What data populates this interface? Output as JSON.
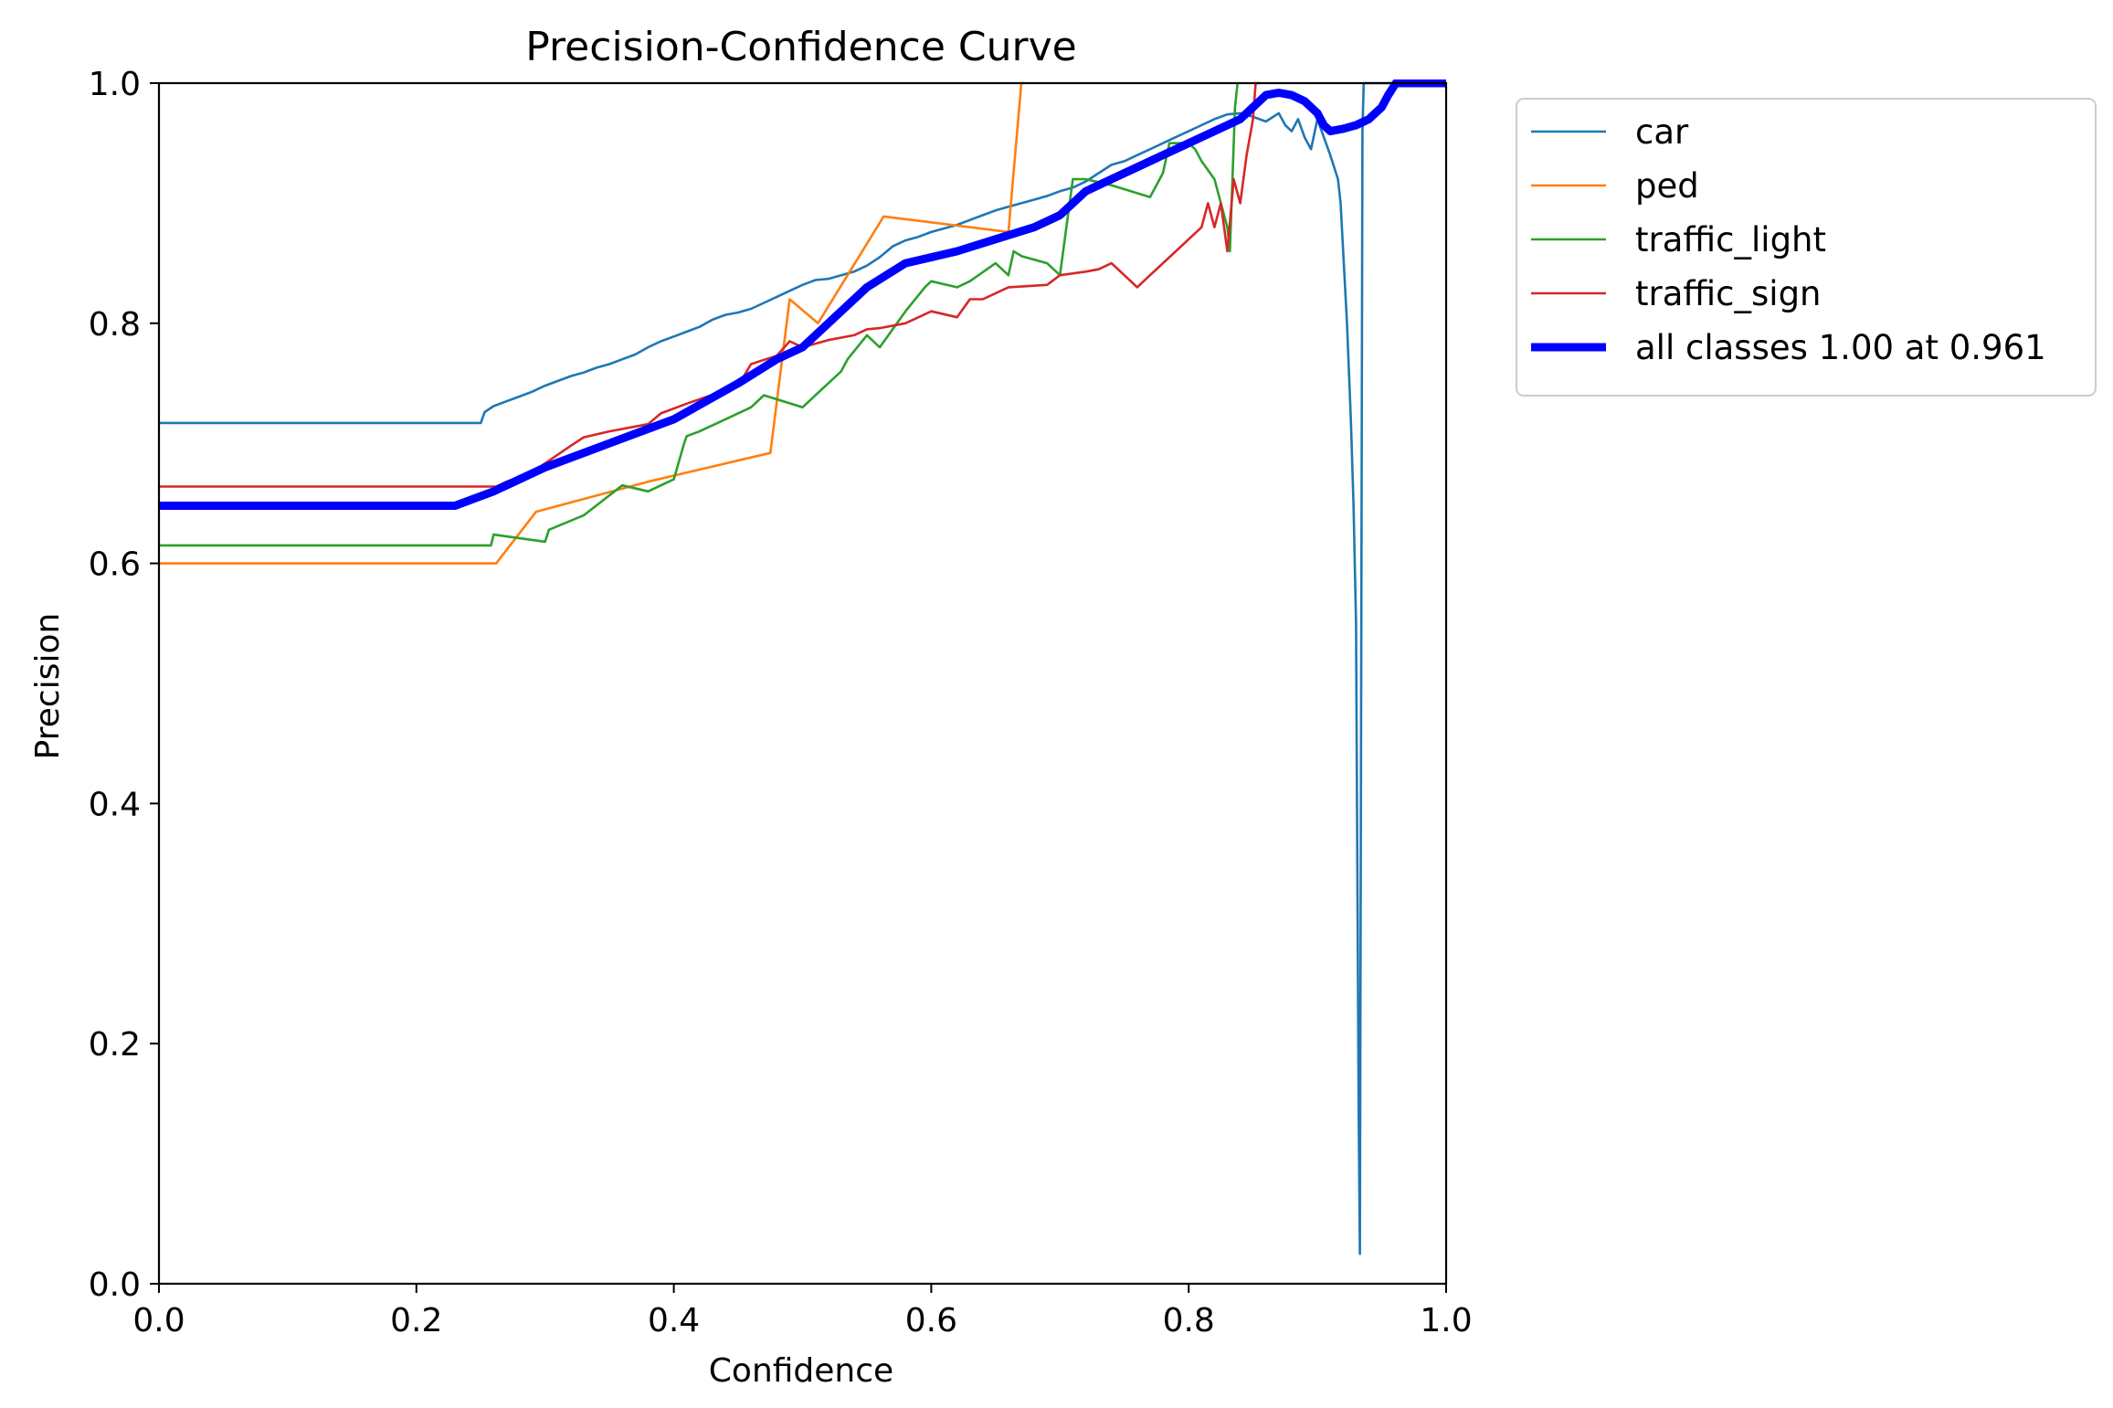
{
  "chart_data": {
    "type": "line",
    "title": "Precision-Confidence Curve",
    "xlabel": "Confidence",
    "ylabel": "Precision",
    "xlim": [
      0,
      1
    ],
    "ylim": [
      0,
      1
    ],
    "xticks": [
      0.0,
      0.2,
      0.4,
      0.6,
      0.8,
      1.0
    ],
    "yticks": [
      0.0,
      0.2,
      0.4,
      0.6,
      0.8,
      1.0
    ],
    "xtick_labels": [
      "0.0",
      "0.2",
      "0.4",
      "0.6",
      "0.8",
      "1.0"
    ],
    "ytick_labels": [
      "0.0",
      "0.2",
      "0.4",
      "0.6",
      "0.8",
      "1.0"
    ],
    "grid": false,
    "legend_position": "outside-top-right",
    "series": [
      {
        "name": "car",
        "color": "#1f77b4",
        "width": "thin",
        "x": [
          0,
          0.25,
          0.253,
          0.26,
          0.27,
          0.28,
          0.29,
          0.3,
          0.31,
          0.32,
          0.33,
          0.34,
          0.35,
          0.36,
          0.37,
          0.38,
          0.39,
          0.4,
          0.41,
          0.42,
          0.43,
          0.44,
          0.45,
          0.46,
          0.47,
          0.48,
          0.49,
          0.5,
          0.51,
          0.52,
          0.53,
          0.54,
          0.55,
          0.56,
          0.57,
          0.58,
          0.59,
          0.6,
          0.61,
          0.62,
          0.63,
          0.64,
          0.65,
          0.66,
          0.67,
          0.68,
          0.69,
          0.7,
          0.71,
          0.72,
          0.73,
          0.74,
          0.75,
          0.76,
          0.77,
          0.78,
          0.79,
          0.8,
          0.81,
          0.82,
          0.83,
          0.84,
          0.85,
          0.86,
          0.87,
          0.875,
          0.88,
          0.885,
          0.89,
          0.895,
          0.9,
          0.905,
          0.91,
          0.913,
          0.916,
          0.918,
          0.92,
          0.923,
          0.926,
          0.928,
          0.93,
          0.931,
          0.932,
          0.933,
          0.935,
          0.936,
          0.94,
          0.95,
          0.96,
          1.0
        ],
        "y": [
          0.717,
          0.717,
          0.726,
          0.731,
          0.735,
          0.739,
          0.743,
          0.748,
          0.752,
          0.756,
          0.759,
          0.763,
          0.766,
          0.77,
          0.774,
          0.78,
          0.785,
          0.789,
          0.793,
          0.797,
          0.803,
          0.807,
          0.809,
          0.812,
          0.817,
          0.822,
          0.827,
          0.832,
          0.836,
          0.837,
          0.84,
          0.843,
          0.848,
          0.855,
          0.864,
          0.869,
          0.872,
          0.876,
          0.879,
          0.882,
          0.886,
          0.89,
          0.894,
          0.897,
          0.9,
          0.903,
          0.906,
          0.91,
          0.913,
          0.918,
          0.925,
          0.932,
          0.935,
          0.94,
          0.945,
          0.95,
          0.955,
          0.96,
          0.965,
          0.97,
          0.974,
          0.975,
          0.972,
          0.968,
          0.975,
          0.965,
          0.96,
          0.97,
          0.955,
          0.945,
          0.97,
          0.955,
          0.94,
          0.93,
          0.92,
          0.9,
          0.86,
          0.8,
          0.72,
          0.65,
          0.55,
          0.35,
          0.15,
          0.025,
          0.96,
          1.0,
          1.0,
          1.0,
          1.0,
          1.0
        ]
      },
      {
        "name": "ped",
        "color": "#ff7f0e",
        "width": "thin",
        "x": [
          0,
          0.262,
          0.293,
          0.38,
          0.475,
          0.49,
          0.512,
          0.563,
          0.66,
          0.67,
          0.672
        ],
        "y": [
          0.6,
          0.6,
          0.643,
          0.668,
          0.692,
          0.82,
          0.8,
          0.889,
          0.876,
          1.0,
          1.0
        ]
      },
      {
        "name": "traffic_light",
        "color": "#2ca02c",
        "width": "thin",
        "x": [
          0,
          0.258,
          0.26,
          0.3,
          0.303,
          0.33,
          0.36,
          0.38,
          0.4,
          0.408,
          0.41,
          0.42,
          0.44,
          0.46,
          0.47,
          0.5,
          0.51,
          0.53,
          0.535,
          0.55,
          0.56,
          0.58,
          0.595,
          0.6,
          0.62,
          0.63,
          0.65,
          0.66,
          0.664,
          0.67,
          0.69,
          0.7,
          0.705,
          0.71,
          0.72,
          0.74,
          0.77,
          0.78,
          0.785,
          0.8,
          0.805,
          0.81,
          0.82,
          0.83,
          0.832,
          0.836,
          0.838
        ],
        "y": [
          0.615,
          0.615,
          0.624,
          0.618,
          0.628,
          0.64,
          0.665,
          0.66,
          0.67,
          0.7,
          0.706,
          0.71,
          0.72,
          0.73,
          0.74,
          0.73,
          0.74,
          0.76,
          0.77,
          0.79,
          0.78,
          0.81,
          0.83,
          0.835,
          0.83,
          0.835,
          0.85,
          0.84,
          0.86,
          0.856,
          0.85,
          0.84,
          0.88,
          0.92,
          0.92,
          0.915,
          0.905,
          0.925,
          0.95,
          0.95,
          0.945,
          0.935,
          0.92,
          0.88,
          0.86,
          0.98,
          1.0
        ]
      },
      {
        "name": "traffic_sign",
        "color": "#d62728",
        "width": "thin",
        "x": [
          0,
          0.262,
          0.27,
          0.29,
          0.32,
          0.33,
          0.35,
          0.38,
          0.39,
          0.41,
          0.45,
          0.46,
          0.48,
          0.49,
          0.5,
          0.52,
          0.54,
          0.55,
          0.56,
          0.58,
          0.6,
          0.62,
          0.63,
          0.64,
          0.66,
          0.69,
          0.7,
          0.72,
          0.73,
          0.74,
          0.75,
          0.76,
          0.77,
          0.78,
          0.79,
          0.8,
          0.81,
          0.815,
          0.82,
          0.825,
          0.83,
          0.835,
          0.84,
          0.845,
          0.85,
          0.852,
          0.855
        ],
        "y": [
          0.664,
          0.664,
          0.668,
          0.676,
          0.698,
          0.705,
          0.71,
          0.716,
          0.725,
          0.733,
          0.748,
          0.766,
          0.773,
          0.785,
          0.78,
          0.786,
          0.79,
          0.795,
          0.796,
          0.8,
          0.81,
          0.805,
          0.82,
          0.82,
          0.83,
          0.832,
          0.84,
          0.843,
          0.845,
          0.85,
          0.84,
          0.83,
          0.84,
          0.85,
          0.86,
          0.87,
          0.88,
          0.9,
          0.88,
          0.9,
          0.86,
          0.92,
          0.9,
          0.94,
          0.97,
          1.0,
          1.0
        ]
      },
      {
        "name": "all classes 1.00 at 0.961",
        "color": "#0000ff",
        "width": "thick",
        "x": [
          0,
          0.23,
          0.26,
          0.3,
          0.35,
          0.4,
          0.45,
          0.48,
          0.5,
          0.52,
          0.55,
          0.58,
          0.62,
          0.65,
          0.68,
          0.7,
          0.72,
          0.74,
          0.76,
          0.78,
          0.8,
          0.82,
          0.84,
          0.85,
          0.86,
          0.87,
          0.88,
          0.89,
          0.9,
          0.905,
          0.91,
          0.92,
          0.93,
          0.94,
          0.95,
          0.955,
          0.961,
          1.0
        ],
        "y": [
          0.648,
          0.648,
          0.66,
          0.68,
          0.7,
          0.72,
          0.75,
          0.77,
          0.78,
          0.8,
          0.83,
          0.85,
          0.86,
          0.87,
          0.88,
          0.89,
          0.91,
          0.92,
          0.93,
          0.94,
          0.95,
          0.96,
          0.97,
          0.98,
          0.99,
          0.992,
          0.99,
          0.985,
          0.975,
          0.965,
          0.96,
          0.962,
          0.965,
          0.97,
          0.98,
          0.99,
          1.0,
          1.0
        ]
      }
    ]
  }
}
